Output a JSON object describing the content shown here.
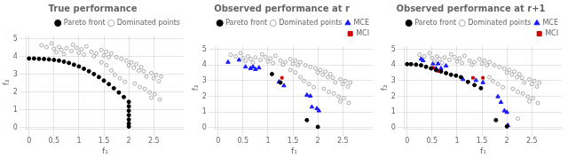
{
  "chart_data": [
    {
      "type": "scatter",
      "title": "True performance",
      "x_label": "f₁",
      "y_label": "f₂",
      "xlim": [
        -0.05,
        3.1
      ],
      "ylim": [
        -0.1,
        5.2
      ],
      "xticks": [
        0,
        0.5,
        1,
        1.5,
        2,
        2.5
      ],
      "yticks": [
        0,
        1,
        2,
        3,
        4,
        5
      ],
      "legend": "upper right",
      "series": [
        {
          "name": "Pareto front",
          "color": "#000000",
          "marker": "circle",
          "values": [
            [
              0.0,
              3.9
            ],
            [
              0.1,
              3.9
            ],
            [
              0.2,
              3.88
            ],
            [
              0.3,
              3.87
            ],
            [
              0.4,
              3.85
            ],
            [
              0.5,
              3.82
            ],
            [
              0.6,
              3.78
            ],
            [
              0.7,
              3.72
            ],
            [
              0.8,
              3.65
            ],
            [
              0.9,
              3.55
            ],
            [
              1.0,
              3.45
            ],
            [
              1.1,
              3.32
            ],
            [
              1.2,
              3.18
            ],
            [
              1.3,
              3.02
            ],
            [
              1.4,
              2.85
            ],
            [
              1.5,
              2.65
            ],
            [
              1.6,
              2.45
            ],
            [
              1.7,
              2.22
            ],
            [
              1.8,
              1.98
            ],
            [
              1.9,
              1.72
            ],
            [
              2.0,
              1.45
            ],
            [
              2.0,
              1.2
            ],
            [
              2.0,
              0.95
            ],
            [
              2.0,
              0.7
            ],
            [
              2.0,
              0.45
            ],
            [
              2.0,
              0.22
            ],
            [
              2.0,
              0.05
            ]
          ]
        },
        {
          "name": "Dominated points",
          "color": "#aaaaaa",
          "marker": "open circle",
          "values": [
            [
              0.25,
              4.65
            ],
            [
              0.35,
              4.55
            ],
            [
              0.45,
              4.75
            ],
            [
              0.5,
              4.45
            ],
            [
              0.55,
              4.25
            ],
            [
              0.6,
              4.55
            ],
            [
              0.65,
              4.38
            ],
            [
              0.7,
              4.15
            ],
            [
              0.75,
              4.48
            ],
            [
              0.85,
              4.32
            ],
            [
              0.88,
              4.68
            ],
            [
              0.95,
              4.5
            ],
            [
              1.0,
              4.22
            ],
            [
              1.05,
              4.42
            ],
            [
              1.1,
              4.12
            ],
            [
              1.15,
              4.58
            ],
            [
              1.25,
              4.28
            ],
            [
              1.3,
              4.02
            ],
            [
              1.35,
              4.18
            ],
            [
              1.45,
              4.38
            ],
            [
              1.5,
              4.08
            ],
            [
              1.55,
              4.28
            ],
            [
              1.6,
              3.98
            ],
            [
              1.65,
              4.18
            ],
            [
              1.75,
              3.98
            ],
            [
              1.85,
              3.88
            ],
            [
              1.95,
              3.78
            ],
            [
              2.0,
              3.52
            ],
            [
              2.05,
              3.68
            ],
            [
              2.1,
              3.38
            ],
            [
              2.15,
              3.58
            ],
            [
              2.2,
              3.22
            ],
            [
              2.25,
              3.42
            ],
            [
              2.3,
              3.18
            ],
            [
              2.35,
              2.88
            ],
            [
              2.45,
              3.08
            ],
            [
              2.5,
              2.78
            ],
            [
              2.55,
              2.98
            ],
            [
              2.6,
              2.62
            ],
            [
              2.65,
              2.88
            ],
            [
              1.45,
              3.68
            ],
            [
              1.55,
              3.52
            ],
            [
              1.65,
              3.22
            ],
            [
              1.72,
              2.98
            ],
            [
              1.82,
              2.78
            ],
            [
              1.92,
              2.58
            ],
            [
              2.12,
              2.48
            ],
            [
              2.22,
              2.28
            ],
            [
              2.32,
              2.18
            ],
            [
              2.42,
              1.98
            ],
            [
              2.52,
              1.88
            ],
            [
              2.45,
              1.68
            ],
            [
              2.62,
              1.58
            ]
          ]
        }
      ]
    },
    {
      "type": "scatter",
      "title": "Observed performance at r",
      "x_label": "f₁",
      "y_label": "f₂",
      "xlim": [
        -0.05,
        3.1
      ],
      "ylim": [
        -0.1,
        5.2
      ],
      "xticks": [
        0,
        0.5,
        1,
        1.5,
        2,
        2.5
      ],
      "yticks": [
        0,
        1,
        2,
        3,
        4,
        5
      ],
      "legend": "upper right",
      "series": [
        {
          "name": "Pareto front",
          "color": "#000000",
          "marker": "circle",
          "values": [
            [
              1.08,
              3.42
            ],
            [
              1.25,
              2.88
            ],
            [
              1.78,
              0.48
            ],
            [
              2.0,
              0.05
            ]
          ]
        },
        {
          "name": "Dominated points",
          "color": "#aaaaaa",
          "marker": "open circle",
          "values": [
            [
              0.25,
              4.65
            ],
            [
              0.35,
              4.55
            ],
            [
              0.45,
              4.75
            ],
            [
              0.5,
              4.45
            ],
            [
              0.55,
              4.25
            ],
            [
              0.6,
              4.55
            ],
            [
              0.65,
              4.38
            ],
            [
              0.7,
              4.15
            ],
            [
              0.75,
              4.48
            ],
            [
              0.85,
              4.32
            ],
            [
              0.88,
              4.68
            ],
            [
              0.95,
              4.5
            ],
            [
              1.0,
              4.22
            ],
            [
              1.05,
              4.42
            ],
            [
              1.1,
              4.12
            ],
            [
              1.15,
              4.58
            ],
            [
              1.25,
              4.28
            ],
            [
              1.3,
              4.02
            ],
            [
              1.35,
              4.18
            ],
            [
              1.45,
              4.38
            ],
            [
              1.5,
              4.08
            ],
            [
              1.55,
              4.28
            ],
            [
              1.6,
              3.98
            ],
            [
              1.65,
              4.18
            ],
            [
              1.75,
              3.98
            ],
            [
              1.85,
              3.88
            ],
            [
              1.95,
              3.78
            ],
            [
              2.0,
              3.52
            ],
            [
              2.05,
              3.68
            ],
            [
              2.1,
              3.38
            ],
            [
              2.15,
              3.58
            ],
            [
              2.2,
              3.22
            ],
            [
              2.25,
              3.42
            ],
            [
              2.3,
              3.18
            ],
            [
              2.35,
              2.88
            ],
            [
              2.45,
              3.08
            ],
            [
              2.5,
              2.78
            ],
            [
              2.55,
              2.98
            ],
            [
              2.6,
              2.62
            ],
            [
              2.65,
              2.88
            ],
            [
              1.45,
              3.68
            ],
            [
              1.55,
              3.52
            ],
            [
              1.65,
              3.22
            ],
            [
              1.72,
              2.98
            ],
            [
              1.82,
              2.78
            ],
            [
              1.92,
              2.58
            ],
            [
              2.12,
              2.48
            ],
            [
              2.22,
              2.28
            ],
            [
              2.32,
              2.18
            ],
            [
              2.42,
              1.98
            ],
            [
              2.52,
              1.88
            ],
            [
              2.45,
              1.68
            ],
            [
              2.62,
              1.58
            ]
          ]
        },
        {
          "name": "MCE",
          "color": "#1a1aff",
          "marker": "triangle",
          "values": [
            [
              0.2,
              4.18
            ],
            [
              0.42,
              4.32
            ],
            [
              0.55,
              3.88
            ],
            [
              0.65,
              3.78
            ],
            [
              0.7,
              3.88
            ],
            [
              0.75,
              3.72
            ],
            [
              0.82,
              3.82
            ],
            [
              1.22,
              2.92
            ],
            [
              1.32,
              2.68
            ],
            [
              1.78,
              2.08
            ],
            [
              1.85,
              2.02
            ],
            [
              1.88,
              1.32
            ],
            [
              1.98,
              1.22
            ],
            [
              2.02,
              1.08
            ]
          ]
        },
        {
          "name": "MCI",
          "color": "#cc0000",
          "marker": "square",
          "values": [
            [
              1.28,
              3.18
            ]
          ]
        }
      ]
    },
    {
      "type": "scatter",
      "title": "Observed performance at r+1",
      "x_label": "f₁",
      "y_label": "f₂",
      "xlim": [
        -0.05,
        3.1
      ],
      "ylim": [
        -0.1,
        5.2
      ],
      "xticks": [
        0,
        0.5,
        1,
        1.5,
        2,
        2.5
      ],
      "yticks": [
        0,
        1,
        2,
        3,
        4,
        5
      ],
      "legend": "upper right",
      "series": [
        {
          "name": "Pareto front",
          "color": "#000000",
          "marker": "circle",
          "values": [
            [
              0.0,
              4.05
            ],
            [
              0.08,
              4.05
            ],
            [
              0.18,
              4.02
            ],
            [
              0.28,
              3.98
            ],
            [
              0.38,
              3.88
            ],
            [
              0.48,
              3.78
            ],
            [
              0.58,
              3.68
            ],
            [
              0.68,
              3.58
            ],
            [
              0.78,
              3.48
            ],
            [
              0.88,
              3.38
            ],
            [
              0.98,
              3.32
            ],
            [
              1.08,
              3.22
            ],
            [
              1.22,
              2.92
            ],
            [
              1.35,
              2.72
            ],
            [
              1.48,
              2.52
            ],
            [
              1.78,
              0.48
            ],
            [
              2.0,
              0.08
            ]
          ]
        },
        {
          "name": "Dominated points",
          "color": "#aaaaaa",
          "marker": "open circle",
          "values": [
            [
              0.25,
              4.65
            ],
            [
              0.35,
              4.55
            ],
            [
              0.45,
              4.75
            ],
            [
              0.5,
              4.45
            ],
            [
              0.55,
              4.25
            ],
            [
              0.6,
              4.55
            ],
            [
              0.65,
              4.38
            ],
            [
              0.7,
              4.15
            ],
            [
              0.75,
              4.48
            ],
            [
              0.85,
              4.32
            ],
            [
              0.88,
              4.68
            ],
            [
              0.95,
              4.5
            ],
            [
              1.0,
              4.22
            ],
            [
              1.05,
              4.42
            ],
            [
              1.1,
              4.12
            ],
            [
              1.15,
              4.58
            ],
            [
              1.25,
              4.28
            ],
            [
              1.3,
              4.02
            ],
            [
              1.35,
              4.18
            ],
            [
              1.45,
              4.38
            ],
            [
              1.5,
              4.08
            ],
            [
              1.55,
              4.28
            ],
            [
              1.6,
              3.98
            ],
            [
              1.65,
              4.18
            ],
            [
              1.75,
              3.98
            ],
            [
              1.85,
              3.88
            ],
            [
              1.95,
              3.78
            ],
            [
              2.0,
              3.52
            ],
            [
              2.05,
              3.68
            ],
            [
              2.1,
              3.38
            ],
            [
              2.15,
              3.58
            ],
            [
              2.2,
              3.22
            ],
            [
              2.25,
              3.42
            ],
            [
              2.3,
              3.18
            ],
            [
              2.35,
              2.88
            ],
            [
              2.45,
              3.08
            ],
            [
              2.5,
              2.78
            ],
            [
              2.55,
              2.98
            ],
            [
              2.6,
              2.62
            ],
            [
              2.65,
              2.88
            ],
            [
              1.65,
              3.22
            ],
            [
              1.72,
              2.98
            ],
            [
              1.82,
              2.78
            ],
            [
              1.92,
              2.58
            ],
            [
              2.12,
              2.48
            ],
            [
              2.22,
              2.28
            ],
            [
              2.32,
              2.18
            ],
            [
              2.42,
              1.98
            ],
            [
              2.52,
              1.88
            ],
            [
              2.45,
              1.68
            ],
            [
              2.62,
              1.58
            ],
            [
              2.22,
              0.58
            ]
          ]
        },
        {
          "name": "MCE",
          "color": "#1a1aff",
          "marker": "triangle",
          "values": [
            [
              0.28,
              4.38
            ],
            [
              0.32,
              4.28
            ],
            [
              0.52,
              4.08
            ],
            [
              0.58,
              3.78
            ],
            [
              0.62,
              4.08
            ],
            [
              0.68,
              3.78
            ],
            [
              0.78,
              3.95
            ],
            [
              1.12,
              3.08
            ],
            [
              1.38,
              3.02
            ],
            [
              1.52,
              2.88
            ],
            [
              1.82,
              1.98
            ],
            [
              1.88,
              1.62
            ],
            [
              1.95,
              1.08
            ],
            [
              2.0,
              0.98
            ],
            [
              2.02,
              0.15
            ]
          ]
        },
        {
          "name": "MCI",
          "color": "#cc0000",
          "marker": "square",
          "values": [
            [
              0.52,
              3.82
            ],
            [
              0.62,
              3.62
            ],
            [
              1.32,
              3.18
            ],
            [
              1.52,
              3.18
            ]
          ]
        }
      ]
    }
  ]
}
